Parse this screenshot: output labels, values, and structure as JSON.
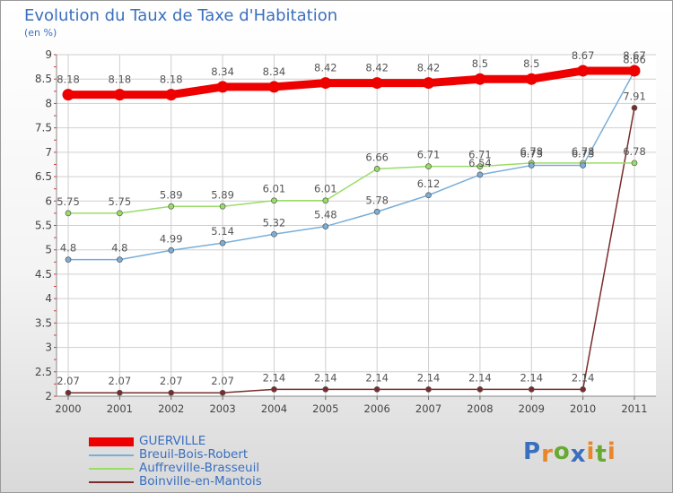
{
  "chart_data": {
    "type": "line",
    "title": "Evolution du Taux de Taxe d'Habitation",
    "ylabel": "(en %)",
    "xlabel": "",
    "ylim": [
      2,
      9
    ],
    "yticks": [
      "2",
      "2.5",
      "3",
      "3.5",
      "4",
      "4.5",
      "5",
      "5.5",
      "6",
      "6.5",
      "7",
      "7.5",
      "8",
      "8.5",
      "9"
    ],
    "categories": [
      "2000",
      "2001",
      "2002",
      "2003",
      "2004",
      "2005",
      "2006",
      "2007",
      "2008",
      "2009",
      "2010",
      "2011"
    ],
    "series": [
      {
        "name": "GUERVILLE",
        "color": "#ee0000",
        "values": [
          8.18,
          8.18,
          8.18,
          8.34,
          8.34,
          8.42,
          8.42,
          8.42,
          8.5,
          8.5,
          8.67,
          8.67
        ],
        "labels": [
          "8.18",
          "8.18",
          "8.18",
          "8.34",
          "8.34",
          "8.42",
          "8.42",
          "8.42",
          "8.5",
          "8.5",
          "8.67",
          "8.67"
        ]
      },
      {
        "name": "Breuil-Bois-Robert",
        "color": "#7aaed8",
        "values": [
          4.8,
          4.8,
          4.99,
          5.14,
          5.32,
          5.48,
          5.78,
          6.12,
          6.54,
          6.73,
          6.73,
          8.66
        ],
        "labels": [
          "4.8",
          "4.8",
          "4.99",
          "5.14",
          "5.32",
          "5.48",
          "5.78",
          "6.12",
          "6.54",
          "6.73",
          "6.73",
          "8.66"
        ]
      },
      {
        "name": "Auffreville-Brasseuil",
        "color": "#99dd66",
        "values": [
          5.75,
          5.75,
          5.89,
          5.89,
          6.01,
          6.01,
          6.66,
          6.71,
          6.71,
          6.78,
          6.78,
          6.78
        ],
        "labels": [
          "5.75",
          "5.75",
          "5.89",
          "5.89",
          "6.01",
          "6.01",
          "6.66",
          "6.71",
          "6.71",
          "6.78",
          "6.78",
          "6.78"
        ]
      },
      {
        "name": "Boinville-en-Mantois",
        "color": "#7a2c2c",
        "values": [
          2.07,
          2.07,
          2.07,
          2.07,
          2.14,
          2.14,
          2.14,
          2.14,
          2.14,
          2.14,
          2.14,
          7.91
        ],
        "labels": [
          "2.07",
          "2.07",
          "2.07",
          "2.07",
          "2.14",
          "2.14",
          "2.14",
          "2.14",
          "2.14",
          "2.14",
          "2.14",
          "7.91"
        ]
      }
    ]
  },
  "logo": {
    "letters": [
      "P",
      "r",
      "o",
      "x",
      "i",
      "t",
      "i"
    ],
    "colors": [
      "#3a6fbf",
      "#e8862a",
      "#66aa33",
      "#3a6fbf",
      "#e8862a",
      "#66aa33",
      "#e8862a"
    ]
  }
}
